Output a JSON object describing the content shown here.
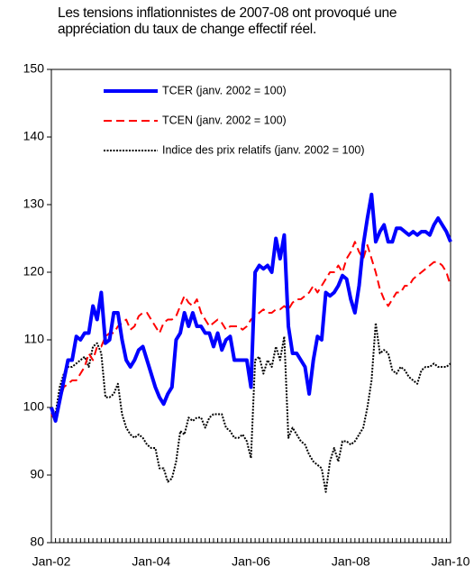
{
  "chart_data": {
    "type": "line",
    "title": "Les tensions inflationnistes de 2007-08 ont provoqué une appréciation du taux de change effectif réel.",
    "categories": [
      "Jan-02",
      null,
      null,
      null,
      null,
      null,
      null,
      null,
      null,
      null,
      null,
      null,
      null,
      null,
      null,
      null,
      null,
      null,
      null,
      null,
      null,
      null,
      null,
      null,
      "Jan-04",
      null,
      null,
      null,
      null,
      null,
      null,
      null,
      null,
      null,
      null,
      null,
      null,
      null,
      null,
      null,
      null,
      null,
      null,
      null,
      null,
      null,
      null,
      null,
      "Jan-06",
      null,
      null,
      null,
      null,
      null,
      null,
      null,
      null,
      null,
      null,
      null,
      null,
      null,
      null,
      null,
      null,
      null,
      null,
      null,
      null,
      null,
      null,
      null,
      "Jan-08",
      null,
      null,
      null,
      null,
      null,
      null,
      null,
      null,
      null,
      null,
      null,
      null,
      null,
      null,
      null,
      null,
      null,
      null,
      null,
      null,
      null,
      null,
      null,
      "Jan-10"
    ],
    "series": [
      {
        "name": "TCER (janv. 2002 = 100)",
        "color": "#0000ff",
        "style": "solid",
        "values": [
          100,
          98,
          101,
          104,
          107,
          107,
          110.5,
          110,
          111,
          111,
          115,
          113,
          117,
          109.5,
          110,
          114,
          114,
          110,
          107,
          106,
          107,
          108.5,
          109,
          107,
          105,
          103,
          101.5,
          100.5,
          102,
          103,
          110,
          111,
          114,
          112,
          114,
          112,
          112,
          111,
          111,
          109,
          111,
          108.5,
          110,
          110.5,
          107,
          107,
          107,
          107,
          103,
          120,
          121,
          120.5,
          121,
          120,
          125,
          122,
          125.5,
          112,
          108,
          108,
          107,
          106,
          102,
          107,
          110.5,
          110,
          117,
          116.5,
          117,
          118,
          119.5,
          119,
          116,
          114,
          118,
          124,
          128,
          131.5,
          124.5,
          126,
          127,
          124.5,
          124.5,
          126.5,
          126.5,
          126,
          125.5,
          126,
          125.5,
          126,
          126,
          125.5,
          127,
          128,
          127,
          126,
          124.5
        ]
      },
      {
        "name": "TCEN (janv. 2002 = 100)",
        "color": "#ff0000",
        "style": "dashed",
        "values": [
          99,
          98,
          101,
          103,
          103.5,
          104,
          104,
          105,
          106,
          108,
          107,
          109,
          109,
          110.5,
          111,
          111,
          112,
          112.5,
          113,
          111.5,
          112,
          113.5,
          114,
          114,
          113,
          112,
          111,
          112.5,
          113,
          113,
          113.5,
          115,
          116.5,
          115.5,
          115,
          116,
          114,
          113,
          112,
          112.5,
          113,
          112.5,
          111.5,
          112,
          112,
          112,
          111.5,
          112,
          113,
          113.5,
          114,
          114.5,
          114,
          114,
          114.5,
          114.5,
          115,
          114.5,
          115.5,
          116,
          116,
          116.5,
          117,
          118,
          117,
          118,
          119,
          120,
          120,
          121,
          120,
          122,
          123,
          124.5,
          123,
          122,
          124,
          122,
          120,
          117.5,
          116,
          115,
          116,
          117,
          117,
          118,
          118,
          119,
          119.5,
          120,
          120.5,
          121,
          121.5,
          121.5,
          121,
          120,
          118
        ]
      },
      {
        "name": "Indice des prix relatifs (janv. 2002 = 100)",
        "color": "#000000",
        "style": "dotted",
        "values": [
          100,
          99,
          103,
          105,
          106,
          106,
          106.5,
          107,
          107.5,
          106,
          109,
          109.5,
          108,
          101.5,
          101.5,
          102,
          103.5,
          99,
          97,
          96,
          95.5,
          96,
          95.5,
          94.5,
          94,
          94,
          91,
          91,
          89,
          89.5,
          92,
          96.5,
          96,
          98.5,
          98,
          98.5,
          98.5,
          97,
          98.5,
          99,
          99,
          99,
          97,
          96.5,
          95.5,
          95.5,
          96,
          95,
          92.5,
          107,
          107.5,
          105,
          107,
          106,
          109,
          107,
          110.5,
          95.5,
          97,
          96,
          95,
          94.5,
          93,
          92,
          91.5,
          91,
          87.5,
          92,
          94,
          92,
          95,
          95,
          94.5,
          95,
          96,
          97,
          100,
          104,
          112.5,
          108,
          108.5,
          108,
          105.5,
          105,
          106,
          105.5,
          104.5,
          104,
          103.5,
          105.5,
          106,
          106,
          106.5,
          106,
          106,
          106,
          106.5
        ]
      }
    ],
    "ylim": [
      80,
      150
    ],
    "yticks": [
      80,
      90,
      100,
      110,
      120,
      130,
      140,
      150
    ],
    "grid": false
  }
}
